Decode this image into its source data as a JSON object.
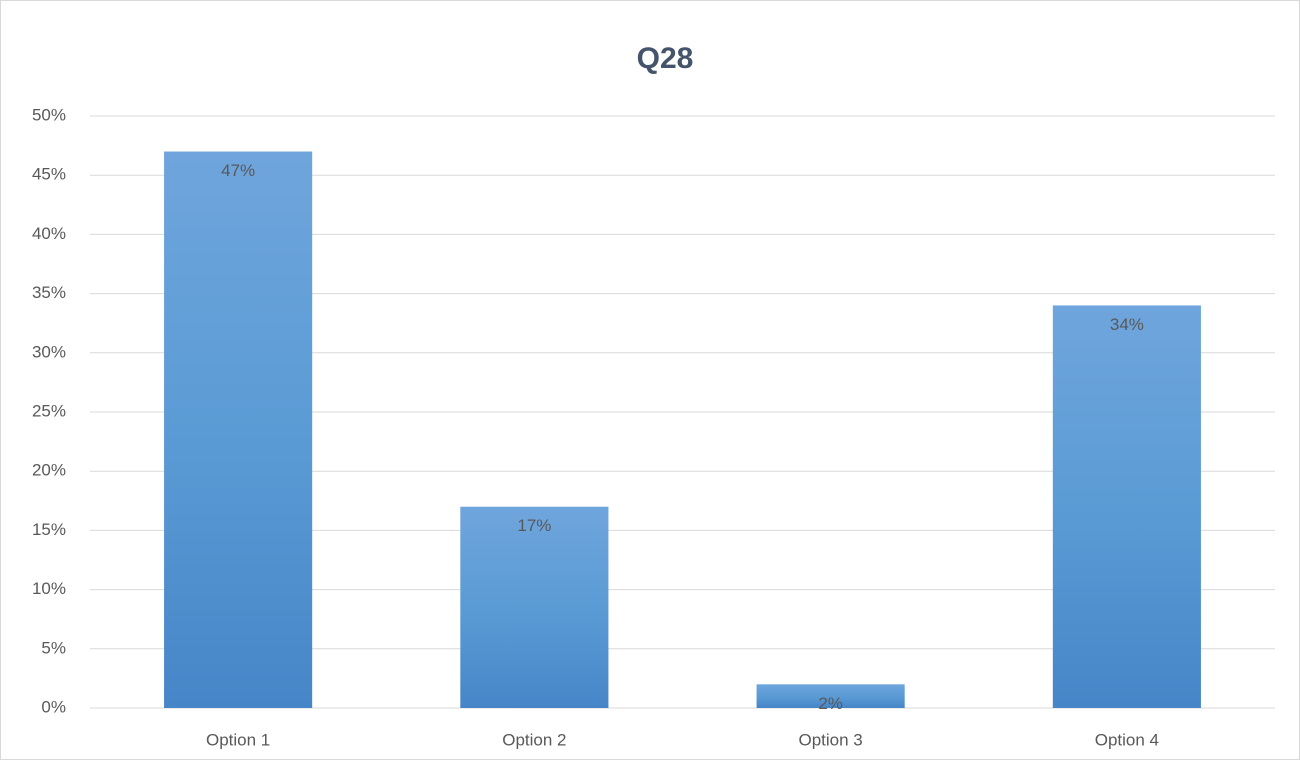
{
  "chart_data": {
    "type": "bar",
    "title": "Q28",
    "categories": [
      "Option 1",
      "Option 2",
      "Option 3",
      "Option 4"
    ],
    "values": [
      47,
      17,
      2,
      34
    ],
    "value_labels": [
      "47%",
      "17%",
      "2%",
      "34%"
    ],
    "color": "#5b9bd5",
    "ylim": [
      0,
      50
    ],
    "yticks": [
      {
        "value": 0,
        "label": "0%"
      },
      {
        "value": 5,
        "label": "5%"
      },
      {
        "value": 10,
        "label": "10%"
      },
      {
        "value": 15,
        "label": "15%"
      },
      {
        "value": 20,
        "label": "20%"
      },
      {
        "value": 25,
        "label": "25%"
      },
      {
        "value": 30,
        "label": "30%"
      },
      {
        "value": 35,
        "label": "35%"
      },
      {
        "value": 40,
        "label": "40%"
      },
      {
        "value": 45,
        "label": "45%"
      },
      {
        "value": 50,
        "label": "50%"
      }
    ],
    "grid": true
  }
}
